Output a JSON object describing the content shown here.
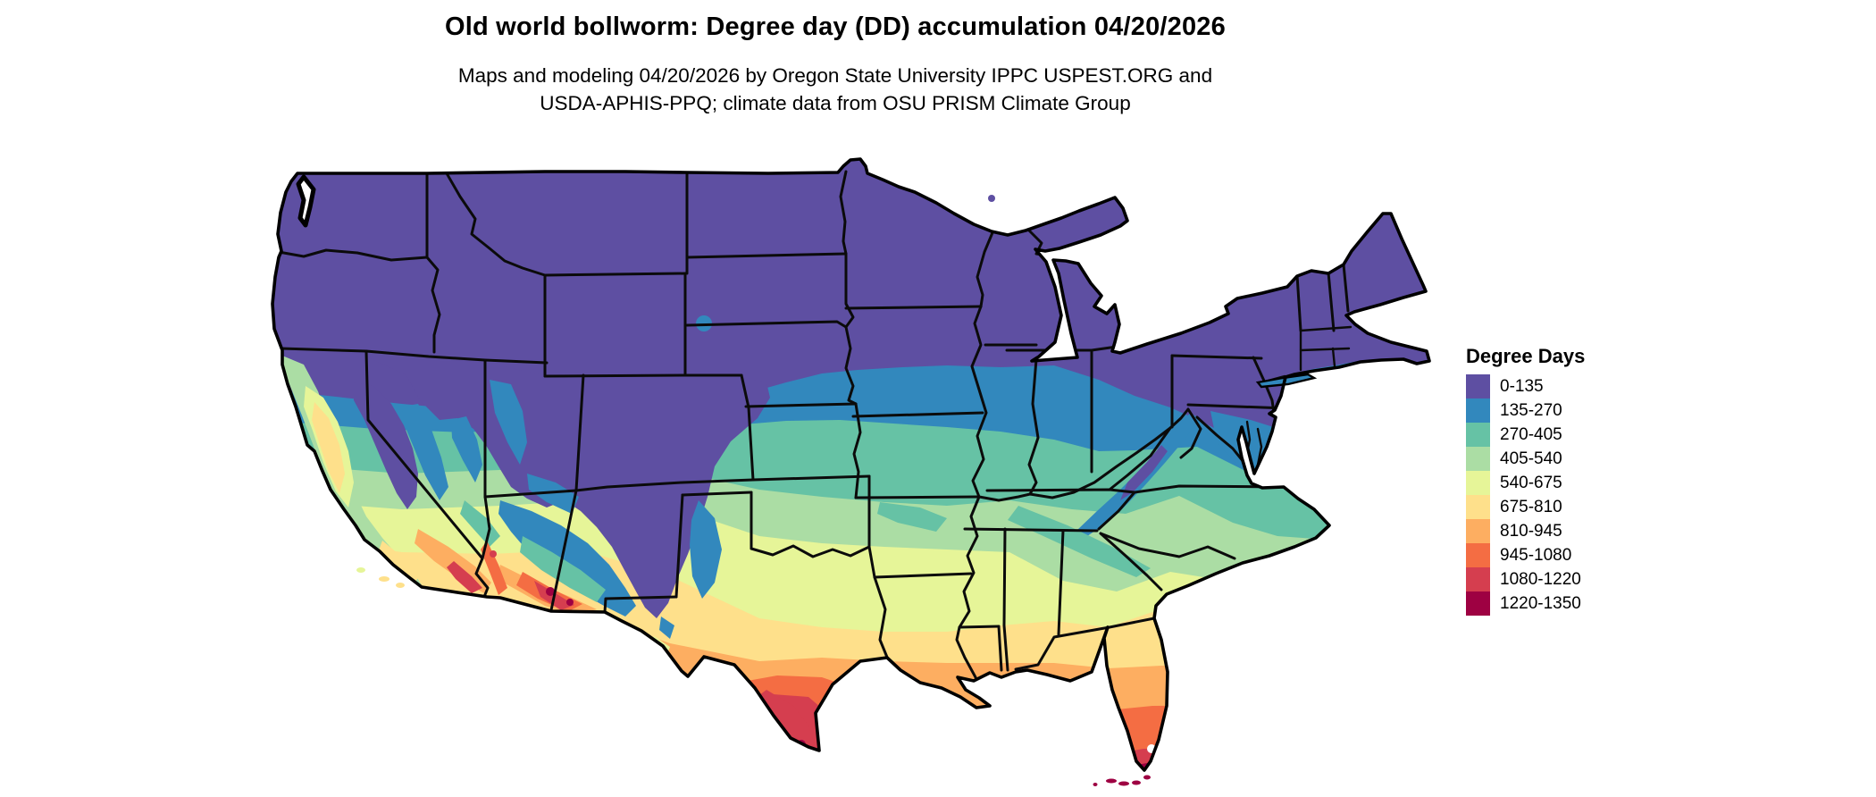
{
  "title": "Old world bollworm: Degree day (DD) accumulation 04/20/2026",
  "subtitle_line1": "Maps and modeling 04/20/2026 by Oregon State University IPPC USPEST.ORG and",
  "subtitle_line2": "USDA-APHIS-PPQ; climate data from OSU PRISM Climate Group",
  "legend": {
    "title": "Degree Days",
    "classes": [
      {
        "label": "0-135",
        "color": "#5e4fa2"
      },
      {
        "label": "135-270",
        "color": "#3288bd"
      },
      {
        "label": "270-405",
        "color": "#66c2a5"
      },
      {
        "label": "405-540",
        "color": "#abdda4"
      },
      {
        "label": "540-675",
        "color": "#e6f598"
      },
      {
        "label": "675-810",
        "color": "#fee08b"
      },
      {
        "label": "810-945",
        "color": "#fdae61"
      },
      {
        "label": "945-1080",
        "color": "#f46d43"
      },
      {
        "label": "1080-1220",
        "color": "#d53e4f"
      },
      {
        "label": "1220-1350",
        "color": "#9e0142"
      }
    ]
  },
  "map": {
    "outline_color": "#000000",
    "state_border_color": "#0b0b0b",
    "water_color": "#ffffff"
  }
}
